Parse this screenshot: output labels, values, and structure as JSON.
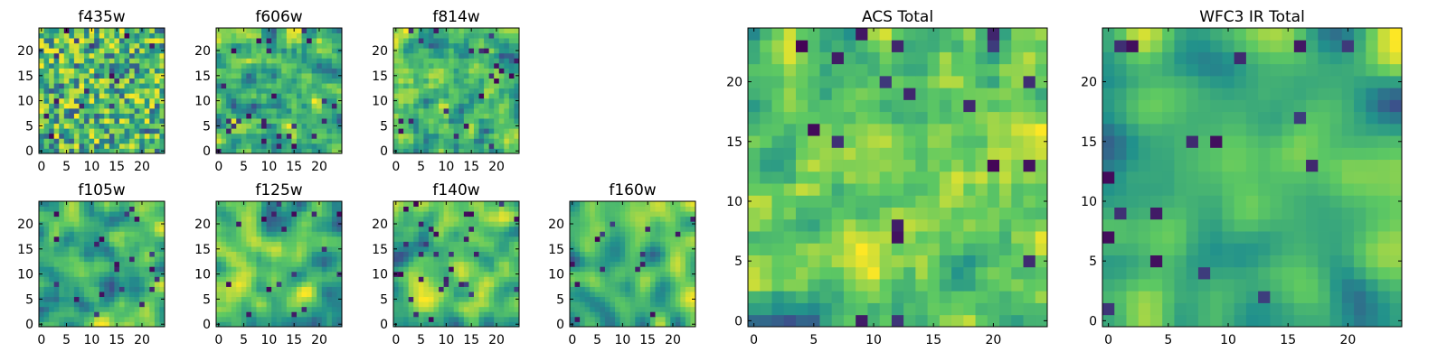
{
  "figure": {
    "colormap": "viridis",
    "colors": [
      "#440154",
      "#3b528b",
      "#21918c",
      "#5ec962",
      "#fde725"
    ]
  },
  "chart_data": [
    {
      "type": "heatmap",
      "title": "f435w",
      "grid_size": [
        25,
        25
      ],
      "xlim": [
        -0.5,
        24.5
      ],
      "ylim": [
        -0.5,
        24.5
      ],
      "xticks": [
        0,
        5,
        10,
        15,
        20
      ],
      "yticks": [
        0,
        5,
        10,
        15,
        20
      ],
      "smoothness": 0.1,
      "seed": 11
    },
    {
      "type": "heatmap",
      "title": "f606w",
      "grid_size": [
        25,
        25
      ],
      "xlim": [
        -0.5,
        24.5
      ],
      "ylim": [
        -0.5,
        24.5
      ],
      "xticks": [
        0,
        5,
        10,
        15,
        20
      ],
      "yticks": [
        0,
        5,
        10,
        15,
        20
      ],
      "smoothness": 0.15,
      "seed": 23
    },
    {
      "type": "heatmap",
      "title": "f814w",
      "grid_size": [
        25,
        25
      ],
      "xlim": [
        -0.5,
        24.5
      ],
      "ylim": [
        -0.5,
        24.5
      ],
      "xticks": [
        0,
        5,
        10,
        15,
        20
      ],
      "yticks": [
        0,
        5,
        10,
        15,
        20
      ],
      "smoothness": 0.15,
      "seed": 37
    },
    {
      "type": "heatmap",
      "title": "f105w",
      "grid_size": [
        25,
        25
      ],
      "xlim": [
        -0.5,
        24.5
      ],
      "ylim": [
        -0.5,
        24.5
      ],
      "xticks": [
        0,
        5,
        10,
        15,
        20
      ],
      "yticks": [
        0,
        5,
        10,
        15,
        20
      ],
      "smoothness": 0.55,
      "seed": 41
    },
    {
      "type": "heatmap",
      "title": "f125w",
      "grid_size": [
        25,
        25
      ],
      "xlim": [
        -0.5,
        24.5
      ],
      "ylim": [
        -0.5,
        24.5
      ],
      "xticks": [
        0,
        5,
        10,
        15,
        20
      ],
      "yticks": [
        0,
        5,
        10,
        15,
        20
      ],
      "smoothness": 0.6,
      "seed": 53
    },
    {
      "type": "heatmap",
      "title": "f140w",
      "grid_size": [
        25,
        25
      ],
      "xlim": [
        -0.5,
        24.5
      ],
      "ylim": [
        -0.5,
        24.5
      ],
      "xticks": [
        0,
        5,
        10,
        15,
        20
      ],
      "yticks": [
        0,
        5,
        10,
        15,
        20
      ],
      "smoothness": 0.6,
      "seed": 67
    },
    {
      "type": "heatmap",
      "title": "f160w",
      "grid_size": [
        25,
        25
      ],
      "xlim": [
        -0.5,
        24.5
      ],
      "ylim": [
        -0.5,
        24.5
      ],
      "xticks": [
        0,
        5,
        10,
        15,
        20
      ],
      "yticks": [
        0,
        5,
        10,
        15,
        20
      ],
      "smoothness": 0.65,
      "seed": 79
    },
    {
      "type": "heatmap",
      "title": "ACS Total",
      "grid_size": [
        25,
        25
      ],
      "xlim": [
        -0.5,
        24.5
      ],
      "ylim": [
        -0.5,
        24.5
      ],
      "xticks": [
        0,
        5,
        10,
        15,
        20
      ],
      "yticks": [
        0,
        5,
        10,
        15,
        20
      ],
      "smoothness": 0.15,
      "seed": 97
    },
    {
      "type": "heatmap",
      "title": "WFC3 IR Total",
      "grid_size": [
        25,
        25
      ],
      "xlim": [
        -0.5,
        24.5
      ],
      "ylim": [
        -0.5,
        24.5
      ],
      "xticks": [
        0,
        5,
        10,
        15,
        20
      ],
      "yticks": [
        0,
        5,
        10,
        15,
        20
      ],
      "smoothness": 0.75,
      "seed": 113
    }
  ]
}
